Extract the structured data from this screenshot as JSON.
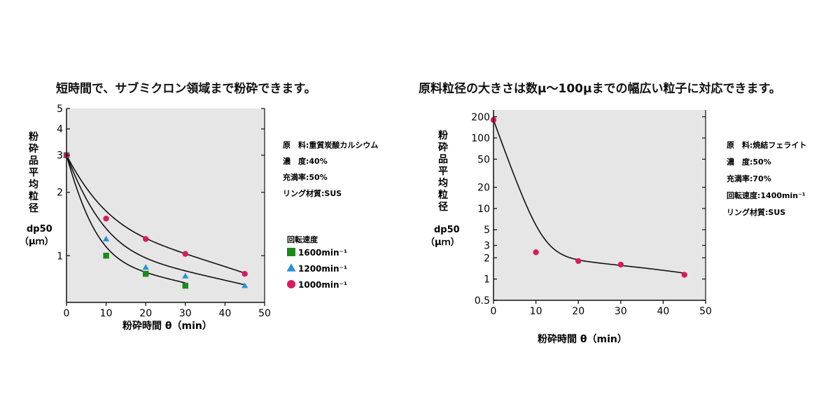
{
  "chart_data": [
    {
      "type": "scatter",
      "title": "短時間で、サブミクロン領域まで粉砕できます。",
      "xlabel": "粉砕時間 θ（min）",
      "ylabel": [
        "粉",
        "砕",
        "品",
        "平",
        "均",
        "粒",
        "径"
      ],
      "ylabel_symbol": "dp50",
      "ylabel_unit": "（μｍ）",
      "x_scale": "linear",
      "y_scale": "log",
      "xlim": [
        0,
        50
      ],
      "ylim": [
        0.6,
        5
      ],
      "x_ticks": [
        0,
        10,
        20,
        30,
        40,
        50
      ],
      "y_ticks": [
        1,
        2,
        3,
        4,
        5
      ],
      "legend_title": "回転速度",
      "legend_placement": "right",
      "conditions": [
        "原　料:重質炭酸カルシウム",
        "濃　度:40%",
        "充満率:50%",
        "リング材質:SUS"
      ],
      "series": [
        {
          "name": "1600min⁻¹",
          "marker": "square",
          "color": "#1a8a1a",
          "x": [
            0,
            10,
            20,
            30
          ],
          "y": [
            3.0,
            1.0,
            0.82,
            0.72
          ]
        },
        {
          "name": "1200min⁻¹",
          "marker": "triangle",
          "color": "#2b90d9",
          "x": [
            0,
            10,
            20,
            30,
            45
          ],
          "y": [
            3.0,
            1.2,
            0.88,
            0.8,
            0.72
          ]
        },
        {
          "name": "1000min⁻¹",
          "marker": "circle",
          "color": "#d81b60",
          "x": [
            0,
            10,
            20,
            30,
            45
          ],
          "y": [
            3.0,
            1.5,
            1.2,
            1.02,
            0.82
          ]
        }
      ],
      "grid": false
    },
    {
      "type": "scatter",
      "title": "原料粒径の大きさは数μ～100μまでの幅広い粒子に対応できます。",
      "xlabel": "粉砕時間 θ（min）",
      "ylabel": [
        "粉",
        "砕",
        "品",
        "平",
        "均",
        "粒",
        "径"
      ],
      "ylabel_symbol": "dp50",
      "ylabel_unit": "（μｍ）",
      "x_scale": "linear",
      "y_scale": "log",
      "xlim": [
        0,
        50
      ],
      "ylim": [
        0.5,
        250
      ],
      "x_ticks": [
        0,
        10,
        20,
        30,
        40,
        50
      ],
      "y_ticks": [
        0.5,
        1,
        2,
        3,
        5,
        10,
        20,
        50,
        100,
        200
      ],
      "conditions": [
        "原　料:焼結フェライト",
        "濃　度:50%",
        "充満率:70%",
        "回転速度:1400min⁻¹",
        "リング材質:SUS"
      ],
      "series": [
        {
          "marker": "circle",
          "color": "#d81b60",
          "x": [
            0,
            10,
            20,
            30,
            45
          ],
          "y": [
            180,
            2.4,
            1.8,
            1.6,
            1.15
          ]
        }
      ],
      "grid": false
    }
  ]
}
